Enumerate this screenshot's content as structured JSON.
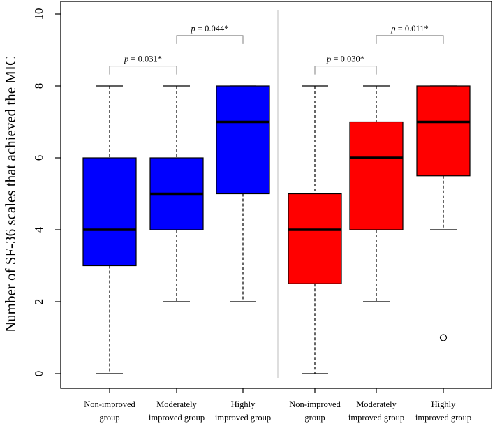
{
  "chart_data": {
    "type": "box",
    "ylabel": "Number of SF-36 scales that achieved the MIC",
    "ylim": [
      0,
      10
    ],
    "yticks": [
      "0",
      "2",
      "4",
      "6",
      "8",
      "10"
    ],
    "panels": [
      {
        "name": "left",
        "color": "#0000FF",
        "boxes": [
          {
            "label_lines": [
              "Non-improved",
              "group"
            ],
            "min": 0,
            "q1": 3,
            "median": 4,
            "q3": 6,
            "max": 8,
            "outliers": []
          },
          {
            "label_lines": [
              "Moderately",
              "improved group"
            ],
            "min": 2,
            "q1": 4,
            "median": 5,
            "q3": 6,
            "max": 8,
            "outliers": []
          },
          {
            "label_lines": [
              "Highly",
              "improved group"
            ],
            "min": 2,
            "q1": 5,
            "median": 7,
            "q3": 8,
            "max": 8,
            "outliers": []
          }
        ]
      },
      {
        "name": "right",
        "color": "#FF0000",
        "boxes": [
          {
            "label_lines": [
              "Non-improved",
              "group"
            ],
            "min": 0,
            "q1": 2.5,
            "median": 4,
            "q3": 5,
            "max": 8,
            "outliers": []
          },
          {
            "label_lines": [
              "Moderately",
              "improved group"
            ],
            "min": 2,
            "q1": 4,
            "median": 6,
            "q3": 7,
            "max": 8,
            "outliers": []
          },
          {
            "label_lines": [
              "Highly",
              "improved group"
            ],
            "min": 4,
            "q1": 5.5,
            "median": 7,
            "q3": 8,
            "max": 8,
            "outliers": [
              1
            ]
          }
        ]
      }
    ],
    "annotations": [
      {
        "from_box": 0,
        "to_box": 1,
        "y": 8.55,
        "p_label": "p",
        "value_text": " = 0.031*"
      },
      {
        "from_box": 1,
        "to_box": 2,
        "y": 9.4,
        "p_label": "p",
        "value_text": " = 0.044*"
      },
      {
        "from_box": 3,
        "to_box": 4,
        "y": 8.55,
        "p_label": "p",
        "value_text": " = 0.030*"
      },
      {
        "from_box": 4,
        "to_box": 5,
        "y": 9.4,
        "p_label": "p",
        "value_text": " = 0.011*"
      }
    ]
  }
}
